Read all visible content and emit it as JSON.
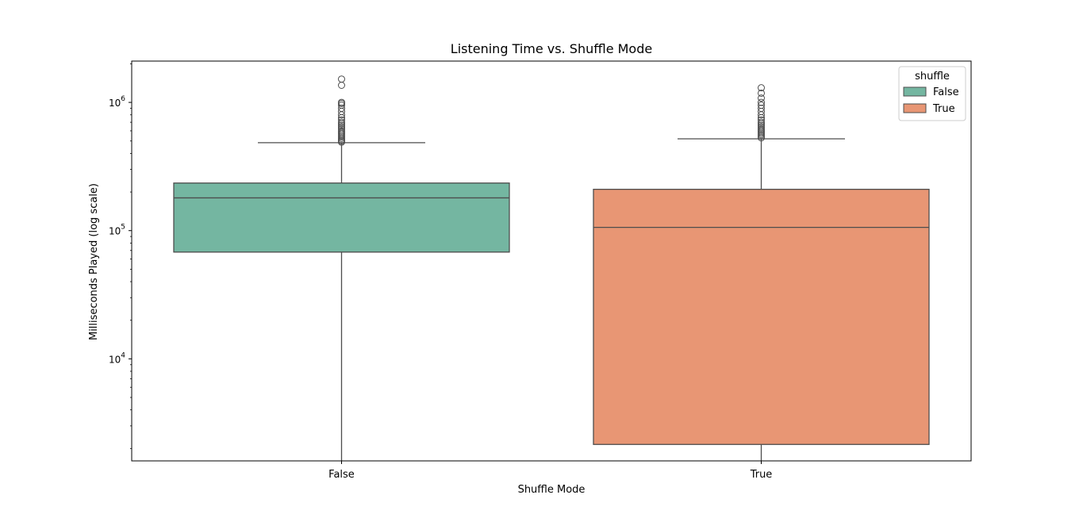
{
  "chart_data": {
    "type": "box",
    "title": "Listening Time vs. Shuffle Mode",
    "xlabel": "Shuffle Mode",
    "ylabel": "Milliseconds Played (log scale)",
    "yscale": "log",
    "ylim": [
      1600,
      2100000
    ],
    "ytick_labels": [
      {
        "value": 10000,
        "base": "10",
        "exp": "4"
      },
      {
        "value": 100000,
        "base": "10",
        "exp": "5"
      },
      {
        "value": 1000000,
        "base": "10",
        "exp": "6"
      }
    ],
    "categories": [
      "False",
      "True"
    ],
    "legend": {
      "title": "shuffle",
      "position": "top-right",
      "entries": [
        "False",
        "True"
      ]
    },
    "series": [
      {
        "name": "False",
        "color": "#74b6a1",
        "whisker_low": 1600,
        "q1": 68000,
        "median": 180000,
        "q3": 235000,
        "whisker_high": 485000,
        "outliers": [
          490000,
          500000,
          510000,
          525000,
          540000,
          555000,
          570000,
          585000,
          600000,
          620000,
          640000,
          660000,
          680000,
          700000,
          730000,
          760000,
          800000,
          850000,
          900000,
          950000,
          980000,
          1000000,
          1360000,
          1520000
        ]
      },
      {
        "name": "True",
        "color": "#e89674",
        "whisker_low": 1600,
        "q1": 2150,
        "median": 106000,
        "q3": 210000,
        "whisker_high": 520000,
        "outliers": [
          530000,
          545000,
          560000,
          575000,
          590000,
          605000,
          620000,
          640000,
          660000,
          680000,
          700000,
          730000,
          760000,
          800000,
          850000,
          900000,
          950000,
          1000000,
          1080000,
          1180000,
          1300000
        ]
      }
    ]
  }
}
